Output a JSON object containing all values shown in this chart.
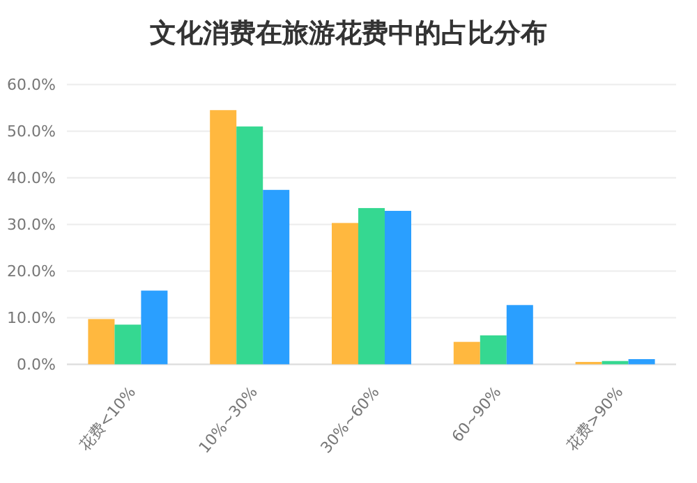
{
  "chart_data": {
    "type": "bar",
    "title": "文化消费在旅游花费中的占比分布",
    "categories": [
      "花费<10%",
      "10%~30%",
      "30%~60%",
      "60~90%",
      "花费>90%"
    ],
    "series": [
      {
        "color": "#ffb83f",
        "values": [
          9.7,
          54.5,
          30.3,
          4.8,
          0.5
        ]
      },
      {
        "color": "#35d891",
        "values": [
          8.5,
          51.0,
          33.5,
          6.2,
          0.7
        ]
      },
      {
        "color": "#2a9fff",
        "values": [
          15.8,
          37.4,
          32.9,
          12.7,
          1.1
        ]
      }
    ],
    "ylim": [
      0,
      60
    ],
    "yticks": [
      {
        "value": 0,
        "label": "0.0%"
      },
      {
        "value": 10,
        "label": "10.0%"
      },
      {
        "value": 20,
        "label": "20.0%"
      },
      {
        "value": 30,
        "label": "30.0%"
      },
      {
        "value": 40,
        "label": "40.0%"
      },
      {
        "value": 50,
        "label": "50.0%"
      },
      {
        "value": 60,
        "label": "60.0%"
      }
    ],
    "grid": "y"
  }
}
